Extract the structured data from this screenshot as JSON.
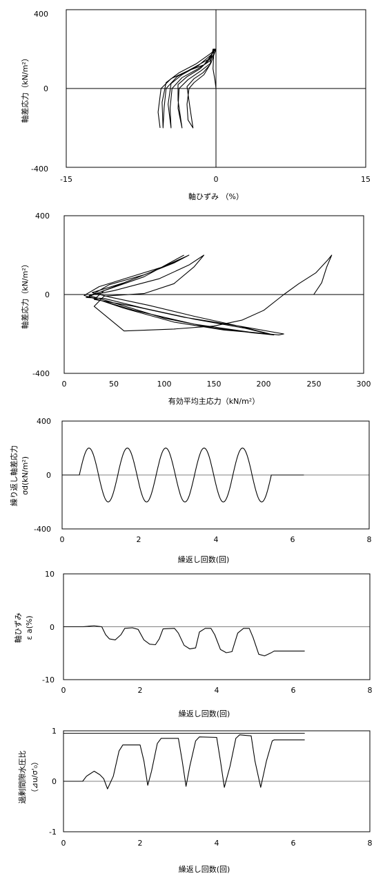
{
  "chart_data": [
    {
      "id": "stress_strain",
      "type": "line",
      "xlabel": "軸ひずみ （%）",
      "ylabel": "軸差応力（kN/m²）",
      "xlim": [
        -15,
        15
      ],
      "ylim": [
        -400,
        400
      ],
      "xticks": [
        "-15",
        "0",
        "15"
      ],
      "yticks": [
        "400",
        "0",
        "-400"
      ],
      "series": [
        {
          "values": [
            [
              0,
              0
            ],
            [
              -0.1,
              40
            ],
            [
              -0.3,
              100
            ],
            [
              -0.2,
              200
            ],
            [
              0,
              200
            ],
            [
              -0.5,
              130
            ],
            [
              -1.2,
              70
            ],
            [
              -2.2,
              30
            ],
            [
              -2.7,
              0
            ],
            [
              -2.9,
              -80
            ],
            [
              -2.8,
              -160
            ],
            [
              -2.3,
              -200
            ],
            [
              -2.6,
              -100
            ],
            [
              -2.9,
              10
            ],
            [
              -2.2,
              50
            ],
            [
              -1.3,
              80
            ],
            [
              -0.6,
              120
            ],
            [
              -0.3,
              200
            ],
            [
              0,
              200
            ],
            [
              -0.5,
              130
            ],
            [
              -1.5,
              90
            ],
            [
              -2.8,
              45
            ],
            [
              -3.7,
              0
            ],
            [
              -3.8,
              -100
            ],
            [
              -3.4,
              -200
            ],
            [
              -3.8,
              -60
            ],
            [
              -3.8,
              20
            ],
            [
              -2.9,
              60
            ],
            [
              -1.6,
              100
            ],
            [
              -0.6,
              150
            ],
            [
              -0.2,
              200
            ],
            [
              0,
              195
            ],
            [
              -0.6,
              140
            ],
            [
              -1.8,
              100
            ],
            [
              -3.4,
              55
            ],
            [
              -4.4,
              0
            ],
            [
              -4.6,
              -100
            ],
            [
              -4.5,
              -200
            ],
            [
              -4.8,
              -80
            ],
            [
              -4.5,
              25
            ],
            [
              -3.4,
              70
            ],
            [
              -1.8,
              115
            ],
            [
              -0.5,
              170
            ],
            [
              -0.1,
              200
            ],
            [
              -0.7,
              150
            ],
            [
              -2.1,
              110
            ],
            [
              -3.9,
              60
            ],
            [
              -5,
              0
            ],
            [
              -5.2,
              -100
            ],
            [
              -5.3,
              -200
            ],
            [
              -5.4,
              -70
            ],
            [
              -5,
              30
            ],
            [
              -3.7,
              80
            ],
            [
              -2,
              125
            ],
            [
              -0.6,
              175
            ],
            [
              -0.1,
              195
            ],
            [
              -1.2,
              120
            ],
            [
              -2.8,
              90
            ],
            [
              -4.5,
              50
            ],
            [
              -5.5,
              0
            ],
            [
              -5.8,
              -120
            ],
            [
              -5.6,
              -200
            ]
          ]
        }
      ]
    },
    {
      "id": "stress_path",
      "type": "line",
      "xlabel": "有効平均主応力（kN/m²）",
      "ylabel": "軸差応力（kN/m²）",
      "xlim": [
        0,
        300
      ],
      "ylim": [
        -400,
        400
      ],
      "xticks": [
        "0",
        "50",
        "100",
        "150",
        "200",
        "250",
        "300"
      ],
      "yticks": [
        "400",
        "0",
        "-400"
      ],
      "series": [
        {
          "values": [
            [
              250,
              0
            ],
            [
              258,
              60
            ],
            [
              263,
              140
            ],
            [
              268,
              200
            ],
            [
              264,
              175
            ],
            [
              252,
              110
            ],
            [
              235,
              55
            ],
            [
              220,
              0
            ],
            [
              200,
              -80
            ],
            [
              178,
              -130
            ],
            [
              150,
              -160
            ],
            [
              110,
              -175
            ],
            [
              60,
              -185
            ],
            [
              30,
              -60
            ],
            [
              40,
              -8
            ],
            [
              80,
              5
            ],
            [
              110,
              55
            ],
            [
              130,
              140
            ],
            [
              140,
              200
            ],
            [
              125,
              150
            ],
            [
              95,
              80
            ],
            [
              50,
              20
            ],
            [
              25,
              -5
            ],
            [
              55,
              -50
            ],
            [
              100,
              -120
            ],
            [
              150,
              -170
            ],
            [
              190,
              -195
            ],
            [
              210,
              -205
            ],
            [
              175,
              -160
            ],
            [
              130,
              -110
            ],
            [
              85,
              -55
            ],
            [
              45,
              -12
            ],
            [
              28,
              10
            ],
            [
              60,
              60
            ],
            [
              100,
              140
            ],
            [
              125,
              200
            ],
            [
              110,
              160
            ],
            [
              80,
              100
            ],
            [
              45,
              50
            ],
            [
              25,
              -10
            ],
            [
              60,
              -70
            ],
            [
              110,
              -140
            ],
            [
              160,
              -180
            ],
            [
              205,
              -200
            ],
            [
              180,
              -170
            ],
            [
              130,
              -125
            ],
            [
              80,
              -70
            ],
            [
              40,
              -20
            ],
            [
              22,
              -15
            ],
            [
              45,
              30
            ],
            [
              85,
              110
            ],
            [
              123,
              195
            ],
            [
              105,
              150
            ],
            [
              70,
              95
            ],
            [
              35,
              40
            ],
            [
              20,
              -5
            ],
            [
              70,
              -80
            ],
            [
              130,
              -150
            ],
            [
              185,
              -190
            ],
            [
              215,
              -205
            ],
            [
              220,
              -200
            ],
            [
              175,
              -160
            ],
            [
              120,
              -115
            ],
            [
              70,
              -60
            ],
            [
              30,
              -25
            ],
            [
              40,
              20
            ],
            [
              80,
              90
            ],
            [
              120,
              200
            ]
          ]
        }
      ]
    },
    {
      "id": "cyclic_stress",
      "type": "line",
      "xlabel": "繰返し回数(回)",
      "ylabel": "繰り返し軸差応力",
      "ylabel2": "σd(kN/m²)",
      "xlim": [
        0,
        8
      ],
      "ylim": [
        -400,
        400
      ],
      "xticks": [
        "0",
        "2",
        "4",
        "6",
        "8"
      ],
      "yticks": [
        "400",
        "0",
        "-400"
      ],
      "series": [
        {
          "name": "",
          "values": "sine"
        }
      ],
      "amplitude": 200,
      "start_x": 0.45,
      "cycles": 5,
      "end_x": 6.3
    },
    {
      "id": "axial_strain",
      "type": "line",
      "xlabel": "繰返し回数(回)",
      "ylabel": "軸ひずみ",
      "ylabel2": "ε a(%)",
      "xlim": [
        0,
        8
      ],
      "ylim": [
        -10,
        10
      ],
      "xticks": [
        "0",
        "2",
        "4",
        "6",
        "8"
      ],
      "yticks": [
        "10",
        "0",
        "-10"
      ],
      "series": [
        {
          "values": [
            [
              0,
              0
            ],
            [
              0.5,
              0
            ],
            [
              0.8,
              0.2
            ],
            [
              1.0,
              0
            ],
            [
              1.1,
              -1.5
            ],
            [
              1.2,
              -2.3
            ],
            [
              1.35,
              -2.5
            ],
            [
              1.5,
              -1.5
            ],
            [
              1.6,
              -0.3
            ],
            [
              1.8,
              -0.2
            ],
            [
              1.95,
              -0.5
            ],
            [
              2.1,
              -2.5
            ],
            [
              2.25,
              -3.3
            ],
            [
              2.4,
              -3.4
            ],
            [
              2.5,
              -2.3
            ],
            [
              2.6,
              -0.4
            ],
            [
              2.9,
              -0.3
            ],
            [
              3.0,
              -1.2
            ],
            [
              3.15,
              -3.5
            ],
            [
              3.3,
              -4.2
            ],
            [
              3.45,
              -4.0
            ],
            [
              3.55,
              -1
            ],
            [
              3.7,
              -0.3
            ],
            [
              3.85,
              -0.3
            ],
            [
              3.95,
              -1.5
            ],
            [
              4.1,
              -4.3
            ],
            [
              4.25,
              -4.9
            ],
            [
              4.4,
              -4.7
            ],
            [
              4.55,
              -1.2
            ],
            [
              4.7,
              -0.3
            ],
            [
              4.85,
              -0.3
            ],
            [
              4.95,
              -2
            ],
            [
              5.1,
              -5.2
            ],
            [
              5.25,
              -5.5
            ],
            [
              5.4,
              -5.0
            ],
            [
              5.5,
              -4.6
            ],
            [
              6.3,
              -4.6
            ]
          ]
        }
      ]
    },
    {
      "id": "pore_pressure",
      "type": "line",
      "xlabel": "繰返し回数(回)",
      "ylabel": "過剰間隙水圧比",
      "ylabel2": "（⊿u/σ'₀）",
      "xlim": [
        0,
        8
      ],
      "ylim": [
        -1,
        1
      ],
      "xticks": [
        "0",
        "2",
        "4",
        "6",
        "8"
      ],
      "yticks": [
        "1",
        "0",
        "-1"
      ],
      "reference_line": 0.95,
      "series": [
        {
          "values": [
            [
              0,
              0
            ],
            [
              0.5,
              0
            ],
            [
              0.6,
              0.1
            ],
            [
              0.8,
              0.2
            ],
            [
              0.95,
              0.13
            ],
            [
              1.05,
              0.05
            ],
            [
              1.15,
              -0.15
            ],
            [
              1.3,
              0.1
            ],
            [
              1.45,
              0.6
            ],
            [
              1.55,
              0.72
            ],
            [
              2.0,
              0.72
            ],
            [
              2.1,
              0.4
            ],
            [
              2.2,
              -0.08
            ],
            [
              2.3,
              0.2
            ],
            [
              2.45,
              0.75
            ],
            [
              2.55,
              0.85
            ],
            [
              3.0,
              0.85
            ],
            [
              3.1,
              0.4
            ],
            [
              3.2,
              -0.1
            ],
            [
              3.3,
              0.3
            ],
            [
              3.45,
              0.8
            ],
            [
              3.55,
              0.88
            ],
            [
              4.0,
              0.87
            ],
            [
              4.1,
              0.4
            ],
            [
              4.2,
              -0.12
            ],
            [
              4.35,
              0.3
            ],
            [
              4.5,
              0.85
            ],
            [
              4.6,
              0.92
            ],
            [
              4.9,
              0.9
            ],
            [
              5.0,
              0.4
            ],
            [
              5.15,
              -0.12
            ],
            [
              5.3,
              0.4
            ],
            [
              5.45,
              0.8
            ],
            [
              5.5,
              0.82
            ],
            [
              6.3,
              0.82
            ]
          ]
        }
      ]
    }
  ]
}
